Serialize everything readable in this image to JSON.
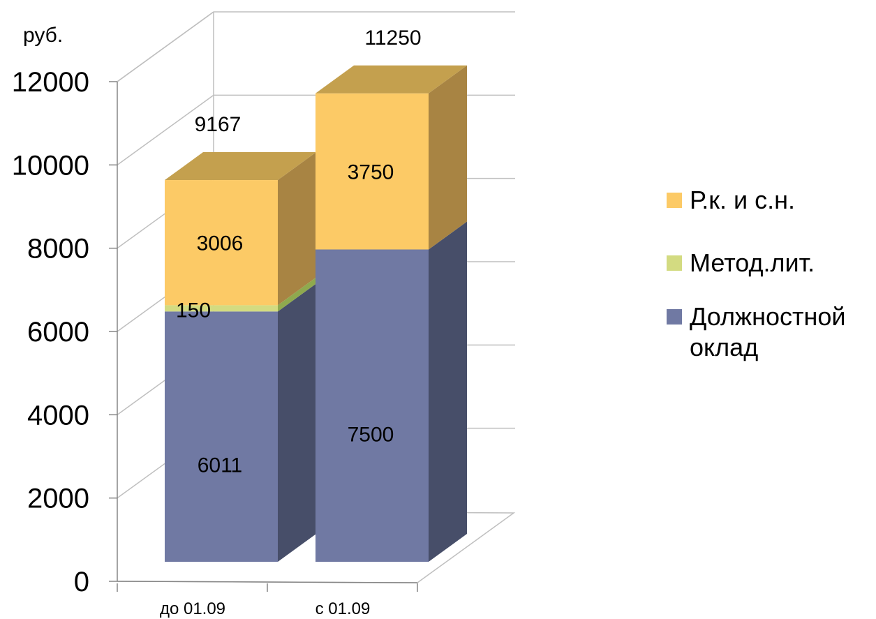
{
  "chart_data": {
    "type": "bar",
    "stacked": true,
    "three_d": true,
    "unit_label": "руб.",
    "categories": [
      "до 01.09",
      "с 01.09"
    ],
    "series": [
      {
        "name": "Должностной оклад",
        "values": [
          6011,
          7500
        ],
        "labels": [
          "6011",
          "7500"
        ],
        "color": "#7079A3",
        "side_color": "#474E69",
        "top_color": "#7079A3"
      },
      {
        "name": "Метод.лит.",
        "values": [
          150,
          0
        ],
        "labels": [
          "150",
          ""
        ],
        "color": "#D3DB81",
        "side_color": "#8FA94E",
        "top_color": "#D3DB81"
      },
      {
        "name": "Р.к. и с.н.",
        "values": [
          3006,
          3750
        ],
        "labels": [
          "3006",
          "3750"
        ],
        "color": "#FCCA66",
        "side_color": "#A88443",
        "top_color": "#C4A04E"
      }
    ],
    "totals": [
      "9167",
      "11250"
    ],
    "legend_order": [
      "Р.к. и с.н.",
      "Метод.лит.",
      "Должностной оклад"
    ],
    "ylim": [
      0,
      12000
    ],
    "yticks": [
      "0",
      "2000",
      "4000",
      "6000",
      "8000",
      "10000",
      "12000"
    ],
    "grid": true,
    "legend_position": "right"
  }
}
